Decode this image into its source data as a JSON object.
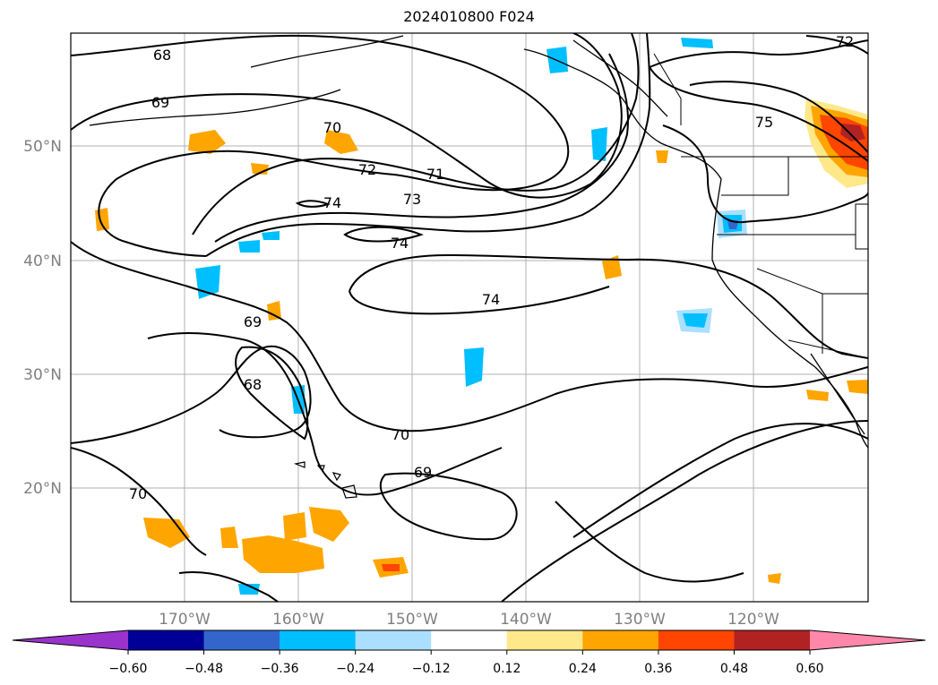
{
  "title": "2024010800 F024",
  "lat_labels": [
    "50°N",
    "40°N",
    "30°N",
    "20°N"
  ],
  "lon_labels": [
    "170°W",
    "160°W",
    "150°W",
    "140°W",
    "130°W",
    "120°W"
  ],
  "contour_labels": [
    "68",
    "69",
    "70",
    "72",
    "71",
    "73",
    "74",
    "74",
    "74",
    "69",
    "68",
    "70",
    "69",
    "70",
    "75",
    "72"
  ],
  "colorbar": {
    "ticks": [
      "−0.60",
      "−0.48",
      "−0.36",
      "−0.24",
      "−0.12",
      "0.12",
      "0.24",
      "0.36",
      "0.48",
      "0.60"
    ],
    "colors": [
      "#9933cc",
      "#000099",
      "#3366cc",
      "#00bfff",
      "#aadfff",
      "#ffffff",
      "#ffe88a",
      "#ffa500",
      "#ff4500",
      "#b22222",
      "#ff88aa"
    ]
  }
}
